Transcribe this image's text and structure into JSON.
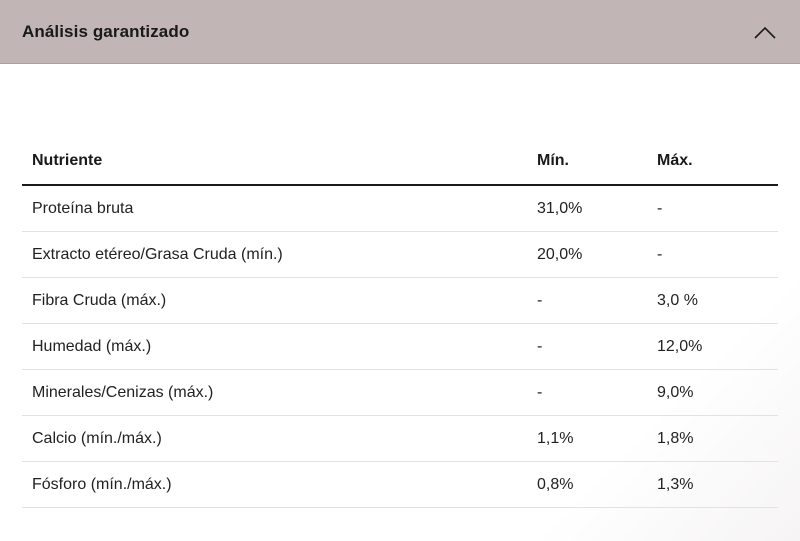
{
  "accordion": {
    "title": "Análisis garantizado",
    "toggle_icon": "chevron-up-icon"
  },
  "table": {
    "headers": [
      "Nutriente",
      "Mín.",
      "Máx."
    ],
    "rows": [
      [
        "Proteína bruta",
        "31,0%",
        "-"
      ],
      [
        "Extracto etéreo/Grasa Cruda (mín.)",
        "20,0%",
        "-"
      ],
      [
        "Fibra Cruda (máx.)",
        "-",
        "3,0 %"
      ],
      [
        "Humedad (máx.)",
        "-",
        "12,0%"
      ],
      [
        "Minerales/Cenizas (máx.)",
        "-",
        "9,0%"
      ],
      [
        "Calcio (mín./máx.)",
        "1,1%",
        "1,8%"
      ],
      [
        "Fósforo (mín./máx.)",
        "0,8%",
        "1,3%"
      ]
    ]
  },
  "colors": {
    "header_background": "#c1b6b5",
    "text": "#1a1a1a",
    "row_divider": "#e2e2e2"
  }
}
